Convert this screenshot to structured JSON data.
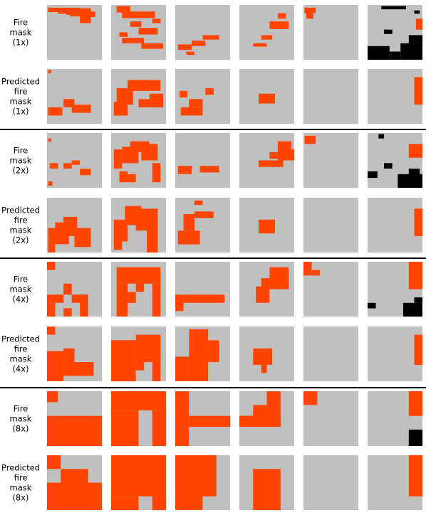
{
  "colors": {
    "background": "#c0c0c0",
    "fire": "#ff4500",
    "nodata": "#000000",
    "separator": "#000000"
  },
  "row_labels": [
    [
      "Fire",
      "mask",
      "(1x)"
    ],
    [
      "Predicted",
      "fire",
      "mask",
      "(1x)"
    ],
    [
      "Fire",
      "mask",
      "(2x)"
    ],
    [
      "Predicted",
      "fire",
      "mask",
      "(2x)"
    ],
    [
      "Fire",
      "mask",
      "(4x)"
    ],
    [
      "Predicted",
      "fire",
      "mask",
      "(4x)"
    ],
    [
      "Fire",
      "mask",
      "(8x)"
    ],
    [
      "Predicted",
      "fire",
      "mask",
      "(8x)"
    ]
  ],
  "grid": {
    "rows": 8,
    "cols": 6
  },
  "masks": [
    [
      [
        [
          0.02,
          0.6,
          0.05,
          0.08
        ],
        [
          0.2,
          0.8,
          0.06,
          0.1
        ],
        [
          0.35,
          0.75,
          0.1,
          0.08
        ],
        [
          0.42,
          0.78,
          0.15,
          0.06
        ],
        [
          0.6,
          0.8,
          0.15,
          0.18
        ],
        [
          0.7,
          0.88,
          0.12,
          0.1
        ]
      ],
      [
        [
          0.1,
          0.35,
          0.02,
          0.12
        ],
        [
          0.2,
          0.8,
          0.12,
          0.12
        ],
        [
          0.35,
          0.55,
          0.3,
          0.1
        ],
        [
          0.5,
          0.85,
          0.42,
          0.12
        ],
        [
          0.2,
          0.6,
          0.6,
          0.1
        ],
        [
          0.55,
          0.95,
          0.7,
          0.1
        ],
        [
          0.15,
          0.3,
          0.5,
          0.08
        ],
        [
          0.75,
          0.9,
          0.25,
          0.08
        ]
      ],
      [
        [
          0.05,
          0.3,
          0.72,
          0.1
        ],
        [
          0.3,
          0.55,
          0.65,
          0.1
        ],
        [
          0.5,
          0.8,
          0.55,
          0.08
        ],
        [
          0.2,
          0.35,
          0.85,
          0.06
        ]
      ],
      [
        [
          0.4,
          0.6,
          0.55,
          0.08
        ],
        [
          0.55,
          0.9,
          0.3,
          0.14
        ],
        [
          0.7,
          0.85,
          0.15,
          0.1
        ],
        [
          0.25,
          0.5,
          0.7,
          0.06
        ]
      ],
      [
        [
          0.02,
          0.22,
          0.05,
          0.1
        ],
        [
          0.05,
          0.18,
          0.15,
          0.1
        ]
      ],
      [
        {
          "c": "k",
          "b": [
            0.0,
            0.4,
            0.75,
            0.25
          ]
        },
        {
          "c": "k",
          "b": [
            0.4,
            0.6,
            0.85,
            0.15
          ]
        },
        {
          "c": "k",
          "b": [
            0.6,
            1.0,
            0.7,
            0.3
          ]
        },
        {
          "c": "k",
          "b": [
            0.75,
            1.0,
            0.55,
            0.15
          ]
        },
        {
          "c": "k",
          "b": [
            0.3,
            0.45,
            0.45,
            0.08
          ]
        },
        {
          "c": "k",
          "b": [
            0.25,
            0.7,
            0.02,
            0.06
          ]
        },
        {
          "c": "k",
          "b": [
            0.85,
            0.95,
            0.1,
            0.06
          ]
        },
        {
          "c": "f",
          "b": [
            0.88,
            1.0,
            0.25,
            0.2
          ]
        }
      ]
    ],
    [
      [
        [
          0.02,
          0.08,
          0.02,
          0.06
        ],
        [
          0.02,
          0.28,
          0.7,
          0.15
        ],
        [
          0.3,
          0.5,
          0.55,
          0.15
        ],
        [
          0.45,
          0.8,
          0.65,
          0.15
        ]
      ],
      [
        [
          0.05,
          0.3,
          0.6,
          0.25
        ],
        [
          0.1,
          0.4,
          0.35,
          0.3
        ],
        [
          0.3,
          0.65,
          0.2,
          0.2
        ],
        [
          0.55,
          0.9,
          0.2,
          0.2
        ],
        [
          0.7,
          0.95,
          0.45,
          0.25
        ],
        [
          0.5,
          0.85,
          0.55,
          0.15
        ]
      ],
      [
        [
          0.1,
          0.5,
          0.7,
          0.15
        ],
        [
          0.25,
          0.5,
          0.55,
          0.15
        ],
        [
          0.08,
          0.22,
          0.4,
          0.12
        ],
        [
          0.55,
          0.7,
          0.35,
          0.12
        ]
      ],
      [
        [
          0.35,
          0.65,
          0.45,
          0.18
        ]
      ],
      [],
      [
        [
          0.85,
          1.0,
          0.15,
          0.5
        ]
      ]
    ],
    [
      [
        [
          0.02,
          0.08,
          0.1,
          0.06
        ],
        [
          0.05,
          0.2,
          0.55,
          0.1
        ],
        [
          0.3,
          0.45,
          0.55,
          0.1
        ],
        [
          0.45,
          0.6,
          0.5,
          0.08
        ],
        [
          0.6,
          0.8,
          0.65,
          0.12
        ],
        [
          0.02,
          0.1,
          0.88,
          0.08
        ]
      ],
      [
        [
          0.05,
          0.2,
          0.3,
          0.35
        ],
        [
          0.2,
          0.5,
          0.25,
          0.3
        ],
        [
          0.35,
          0.7,
          0.15,
          0.2
        ],
        [
          0.55,
          0.85,
          0.2,
          0.3
        ],
        [
          0.75,
          0.9,
          0.55,
          0.35
        ],
        [
          0.3,
          0.45,
          0.75,
          0.15
        ],
        [
          0.15,
          0.3,
          0.7,
          0.2
        ]
      ],
      [
        [
          0.05,
          0.3,
          0.6,
          0.15
        ],
        [
          0.45,
          0.8,
          0.6,
          0.12
        ]
      ],
      [
        [
          0.35,
          0.8,
          0.5,
          0.12
        ],
        [
          0.7,
          0.95,
          0.15,
          0.35
        ],
        [
          0.55,
          0.7,
          0.35,
          0.12
        ],
        [
          0.9,
          1.0,
          0.3,
          0.2
        ]
      ],
      [
        [
          0.02,
          0.22,
          0.05,
          0.15
        ]
      ],
      [
        {
          "c": "k",
          "b": [
            0.0,
            0.18,
            0.7,
            0.12
          ]
        },
        {
          "c": "k",
          "b": [
            0.3,
            0.45,
            0.55,
            0.1
          ]
        },
        {
          "c": "k",
          "b": [
            0.55,
            1.0,
            0.75,
            0.25
          ]
        },
        {
          "c": "k",
          "b": [
            0.75,
            0.95,
            0.65,
            0.15
          ]
        },
        {
          "c": "k",
          "b": [
            0.2,
            0.3,
            0.02,
            0.08
          ]
        },
        {
          "c": "f",
          "b": [
            0.75,
            1.0,
            0.2,
            0.25
          ]
        }
      ]
    ],
    [
      [
        [
          0.02,
          0.15,
          0.55,
          0.45
        ],
        [
          0.15,
          0.4,
          0.45,
          0.4
        ],
        [
          0.3,
          0.55,
          0.35,
          0.35
        ],
        [
          0.5,
          0.8,
          0.55,
          0.35
        ]
      ],
      [
        [
          0.05,
          0.3,
          0.4,
          0.4
        ],
        [
          0.25,
          0.55,
          0.15,
          0.35
        ],
        [
          0.45,
          0.85,
          0.2,
          0.4
        ],
        [
          0.65,
          0.85,
          0.55,
          0.45
        ],
        [
          0.05,
          0.2,
          0.75,
          0.2
        ]
      ],
      [
        [
          0.05,
          0.45,
          0.6,
          0.25
        ],
        [
          0.15,
          0.35,
          0.3,
          0.3
        ],
        [
          0.35,
          0.7,
          0.25,
          0.12
        ],
        [
          0.35,
          0.5,
          0.05,
          0.08
        ]
      ],
      [
        [
          0.35,
          0.65,
          0.4,
          0.25
        ]
      ],
      [],
      [
        [
          0.85,
          1.0,
          0.2,
          0.5
        ]
      ]
    ],
    [
      [
        [
          0.0,
          0.15,
          0.0,
          0.15
        ],
        [
          0.0,
          0.3,
          0.6,
          0.15
        ],
        [
          0.3,
          0.45,
          0.4,
          0.2
        ],
        [
          0.45,
          0.75,
          0.6,
          0.15
        ],
        [
          0.6,
          0.75,
          0.6,
          0.4
        ],
        [
          0.0,
          0.15,
          0.75,
          0.25
        ],
        [
          0.3,
          0.45,
          0.85,
          0.15
        ]
      ],
      [
        [
          0.1,
          0.9,
          0.1,
          0.3
        ],
        [
          0.1,
          0.3,
          0.4,
          0.6
        ],
        [
          0.75,
          0.9,
          0.4,
          0.6
        ],
        [
          0.45,
          0.6,
          0.4,
          0.15
        ],
        [
          0.3,
          0.45,
          0.55,
          0.2
        ]
      ],
      [
        [
          0.0,
          0.15,
          0.6,
          0.3
        ],
        [
          0.15,
          0.9,
          0.6,
          0.15
        ]
      ],
      [
        [
          0.3,
          0.55,
          0.45,
          0.3
        ],
        [
          0.55,
          0.9,
          0.1,
          0.4
        ],
        [
          0.4,
          0.55,
          0.3,
          0.15
        ]
      ],
      [
        [
          0.0,
          0.15,
          0.0,
          0.25
        ],
        [
          0.15,
          0.3,
          0.15,
          0.1
        ]
      ],
      [
        {
          "c": "f",
          "b": [
            0.75,
            1.0,
            0.0,
            0.5
          ]
        },
        {
          "c": "k",
          "b": [
            0.0,
            0.15,
            0.75,
            0.1
          ]
        },
        {
          "c": "k",
          "b": [
            0.65,
            1.0,
            0.75,
            0.25
          ]
        },
        {
          "c": "k",
          "b": [
            0.85,
            1.0,
            0.65,
            0.1
          ]
        }
      ]
    ],
    [
      [
        [
          0.0,
          0.15,
          0.0,
          0.15
        ],
        [
          0.0,
          0.3,
          0.45,
          0.55
        ],
        [
          0.3,
          0.5,
          0.4,
          0.5
        ],
        [
          0.5,
          0.85,
          0.65,
          0.25
        ]
      ],
      [
        [
          0.0,
          0.45,
          0.25,
          0.75
        ],
        [
          0.45,
          0.9,
          0.15,
          0.5
        ],
        [
          0.45,
          0.6,
          0.5,
          0.3
        ],
        [
          0.75,
          0.9,
          0.5,
          0.5
        ]
      ],
      [
        [
          0.25,
          0.6,
          0.05,
          0.95
        ],
        [
          0.6,
          0.8,
          0.25,
          0.4
        ],
        [
          0.0,
          0.25,
          0.55,
          0.45
        ]
      ],
      [
        [
          0.25,
          0.6,
          0.4,
          0.3
        ],
        [
          0.4,
          0.5,
          0.7,
          0.15
        ]
      ],
      [],
      [
        [
          0.85,
          1.0,
          0.15,
          0.55
        ]
      ]
    ],
    [
      [
        [
          0.0,
          0.2,
          0.0,
          0.2
        ],
        [
          0.0,
          1.0,
          0.45,
          0.55
        ]
      ],
      [
        [
          0.0,
          1.0,
          0.0,
          0.35
        ],
        [
          0.0,
          0.5,
          0.35,
          0.65
        ],
        [
          0.75,
          1.0,
          0.35,
          0.65
        ]
      ],
      [
        [
          0.0,
          0.25,
          0.0,
          1.0
        ],
        [
          0.25,
          1.0,
          0.45,
          0.2
        ]
      ],
      [
        [
          0.0,
          0.25,
          0.45,
          0.2
        ],
        [
          0.25,
          0.5,
          0.25,
          0.4
        ],
        [
          0.5,
          0.75,
          0.0,
          0.65
        ],
        [
          0.0,
          0.75,
          0.45,
          0.2
        ]
      ],
      [
        [
          0.0,
          0.25,
          0.0,
          0.25
        ]
      ],
      [
        {
          "c": "f",
          "b": [
            0.75,
            1.0,
            0.0,
            0.45
          ]
        },
        {
          "c": "k",
          "b": [
            0.75,
            1.0,
            0.7,
            0.3
          ]
        }
      ]
    ],
    [
      [
        [
          0.0,
          0.25,
          0.0,
          0.25
        ],
        [
          0.25,
          0.5,
          0.25,
          0.25
        ],
        [
          0.0,
          1.0,
          0.5,
          0.5
        ],
        [
          0.5,
          0.75,
          0.25,
          0.25
        ]
      ],
      [
        [
          0.0,
          1.0,
          0.0,
          0.75
        ],
        [
          0.0,
          0.5,
          0.75,
          0.25
        ],
        [
          0.75,
          1.0,
          0.75,
          0.25
        ],
        [
          0.0,
          0.25,
          0.0,
          0.25
        ]
      ],
      [
        [
          0.0,
          0.5,
          0.0,
          1.0
        ],
        [
          0.25,
          0.75,
          0.0,
          0.75
        ]
      ],
      [
        [
          0.25,
          0.75,
          0.25,
          0.75
        ]
      ],
      [],
      [
        [
          0.75,
          1.0,
          0.0,
          0.75
        ]
      ]
    ]
  ]
}
